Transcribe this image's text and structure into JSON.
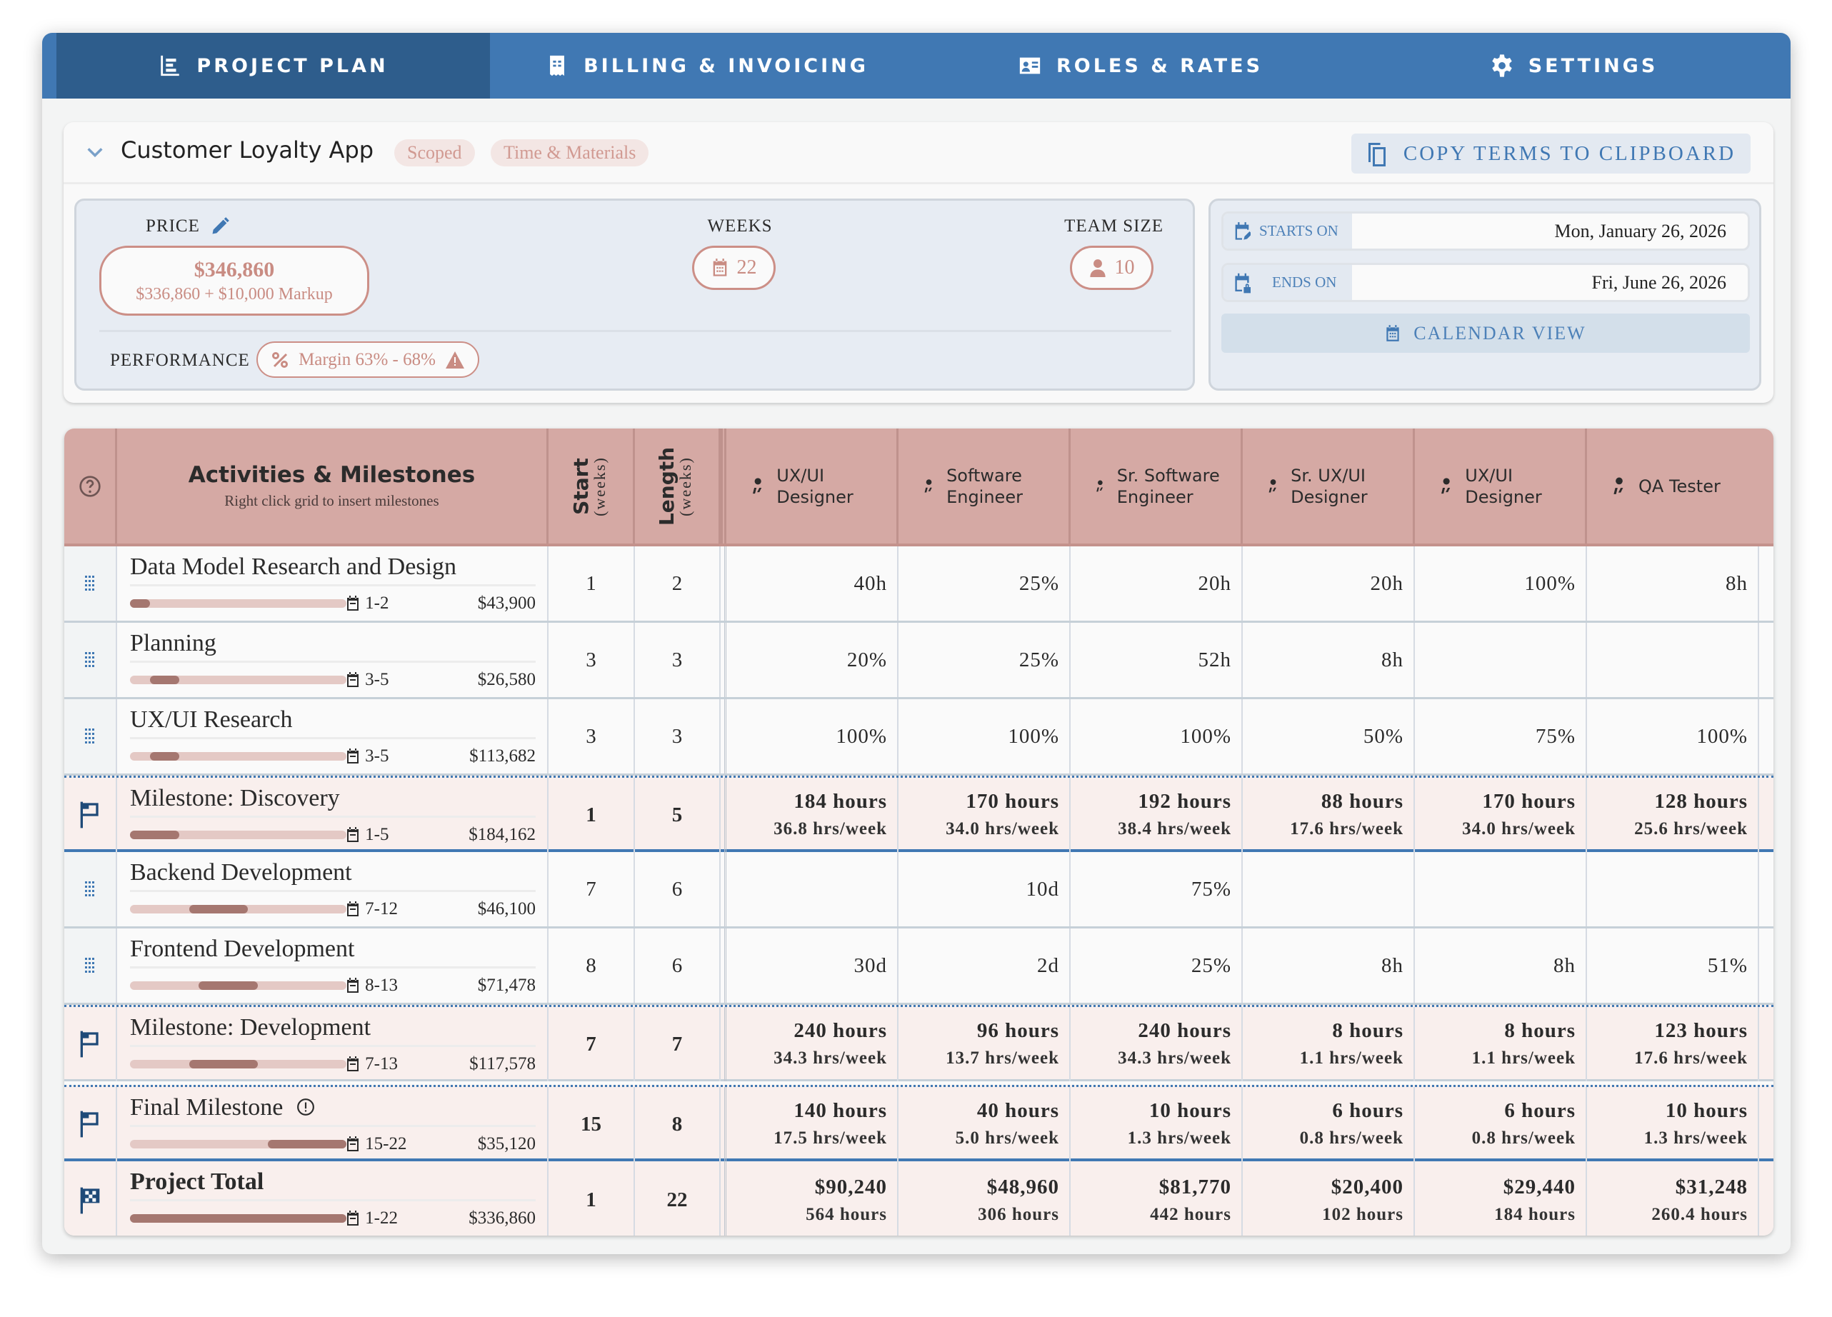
{
  "tabs": [
    {
      "label": "PROJECT PLAN",
      "icon": "timeline-icon",
      "active": true
    },
    {
      "label": "BILLING & INVOICING",
      "icon": "receipt-icon",
      "active": false
    },
    {
      "label": "ROLES & RATES",
      "icon": "id-card-icon",
      "active": false
    },
    {
      "label": "SETTINGS",
      "icon": "gear-icon",
      "active": false
    }
  ],
  "project": {
    "title": "Customer Loyalty App",
    "badges": [
      "Scoped",
      "Time & Materials"
    ],
    "copy_label": "COPY TERMS TO CLIPBOARD"
  },
  "summary": {
    "price_label": "PRICE",
    "price": "$346,860",
    "price_detail": "$336,860 + $10,000 Markup",
    "weeks_label": "WEEKS",
    "weeks": "22",
    "team_label": "TEAM SIZE",
    "team": "10",
    "performance_label": "PERFORMANCE",
    "margin": "Margin 63% - 68%",
    "starts_label": "STARTS ON",
    "starts": "Mon, January 26, 2026",
    "ends_label": "ENDS ON",
    "ends": "Fri, June 26, 2026",
    "calendar_label": "CALENDAR VIEW"
  },
  "colors": {
    "brand": "#4078b3",
    "brand_dark": "#2e5d8c",
    "header": "#d5a9a4",
    "accent": "#cc8f87",
    "bar_fill": "#a57770",
    "bar_track": "#e4c9c5",
    "milestone_bg": "#f9efed"
  },
  "grid": {
    "title": "Activities & Milestones",
    "subtitle": "Right click grid to insert milestones",
    "start_label": "Start",
    "length_label": "Length",
    "weeks_unit": "(weeks)",
    "roles": [
      "UX/UI Designer",
      "Software Engineer",
      "Sr. Software Engineer",
      "Sr. UX/UI Designer",
      "UX/UI Designer",
      "QA Tester"
    ],
    "rows": [
      {
        "type": "activity",
        "name": "Data Model Research and Design",
        "range": "1-2",
        "cost": "$43,900",
        "start": 1,
        "length": 2,
        "cells": [
          "40h",
          "25%",
          "20h",
          "20h",
          "100%",
          "8h"
        ]
      },
      {
        "type": "activity",
        "name": "Planning",
        "range": "3-5",
        "cost": "$26,580",
        "start": 3,
        "length": 3,
        "cells": [
          "20%",
          "25%",
          "52h",
          "8h",
          "",
          ""
        ]
      },
      {
        "type": "activity",
        "name": "UX/UI Research",
        "range": "3-5",
        "cost": "$113,682",
        "start": 3,
        "length": 3,
        "cells": [
          "100%",
          "100%",
          "100%",
          "50%",
          "75%",
          "100%"
        ]
      },
      {
        "type": "milestone",
        "name": "Milestone: Discovery",
        "range": "1-5",
        "cost": "$184,162",
        "start": 1,
        "length": 5,
        "cells": [
          [
            "184 hours",
            "36.8 hrs/week"
          ],
          [
            "170 hours",
            "34.0 hrs/week"
          ],
          [
            "192 hours",
            "38.4 hrs/week"
          ],
          [
            "88 hours",
            "17.6 hrs/week"
          ],
          [
            "170 hours",
            "34.0 hrs/week"
          ],
          [
            "128 hours",
            "25.6 hrs/week"
          ]
        ]
      },
      {
        "type": "activity",
        "name": "Backend Development",
        "range": "7-12",
        "cost": "$46,100",
        "start": 7,
        "length": 6,
        "cells": [
          "",
          "10d",
          "75%",
          "",
          "",
          ""
        ]
      },
      {
        "type": "activity",
        "name": "Frontend Development",
        "range": "8-13",
        "cost": "$71,478",
        "start": 8,
        "length": 6,
        "cells": [
          "30d",
          "2d",
          "25%",
          "8h",
          "8h",
          "51%"
        ]
      },
      {
        "type": "milestone",
        "name": "Milestone: Development",
        "range": "7-13",
        "cost": "$117,578",
        "start": 7,
        "length": 7,
        "cells": [
          [
            "240 hours",
            "34.3 hrs/week"
          ],
          [
            "96 hours",
            "13.7 hrs/week"
          ],
          [
            "240 hours",
            "34.3 hrs/week"
          ],
          [
            "8 hours",
            "1.1 hrs/week"
          ],
          [
            "8 hours",
            "1.1 hrs/week"
          ],
          [
            "123 hours",
            "17.6 hrs/week"
          ]
        ]
      },
      {
        "type": "final",
        "name": "Final Milestone",
        "range": "15-22",
        "cost": "$35,120",
        "start": 15,
        "length": 8,
        "cells": [
          [
            "140 hours",
            "17.5 hrs/week"
          ],
          [
            "40 hours",
            "5.0 hrs/week"
          ],
          [
            "10 hours",
            "1.3 hrs/week"
          ],
          [
            "6 hours",
            "0.8 hrs/week"
          ],
          [
            "6 hours",
            "0.8 hrs/week"
          ],
          [
            "10 hours",
            "1.3 hrs/week"
          ]
        ]
      },
      {
        "type": "total",
        "name": "Project Total",
        "range": "1-22",
        "cost": "$336,860",
        "start": 1,
        "length": 22,
        "cells": [
          [
            "$90,240",
            "564 hours"
          ],
          [
            "$48,960",
            "306 hours"
          ],
          [
            "$81,770",
            "442 hours"
          ],
          [
            "$20,400",
            "102 hours"
          ],
          [
            "$29,440",
            "184 hours"
          ],
          [
            "$31,248",
            "260.4 hours"
          ]
        ]
      }
    ]
  }
}
